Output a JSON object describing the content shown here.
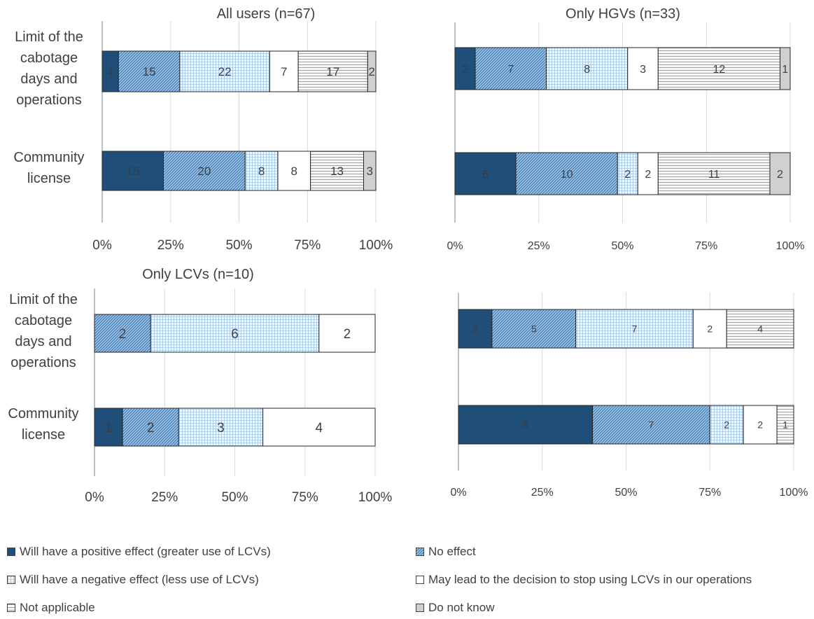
{
  "colors": {
    "positive": "#1f4e79",
    "no_effect": "#9dc3e6",
    "negative": "#deebf7",
    "stop": "#ffffff",
    "not_applicable": "#f2f2f2",
    "dont_know": "#d0d0d0",
    "grid": "#d9d9d9",
    "axis": "#404040"
  },
  "categories_legend": [
    {
      "key": "positive",
      "label": "Will have a positive effect (greater use of LCVs)"
    },
    {
      "key": "no_effect",
      "label": "No effect"
    },
    {
      "key": "negative",
      "label": "Will have a negative effect (less use of LCVs)"
    },
    {
      "key": "stop",
      "label": "May lead to the decision to stop using LCVs in our operations"
    },
    {
      "key": "not_applicable",
      "label": "Not applicable"
    },
    {
      "key": "dont_know",
      "label": "Do not know"
    }
  ],
  "chart_data": [
    {
      "type": "bar",
      "orientation": "horizontal-stacked-100",
      "title": "All users (n=67)",
      "categories": [
        "Limit of the cabotage days and operations",
        "Community license"
      ],
      "category_lines": [
        [
          "Limit of the",
          "cabotage",
          "days and",
          "operations"
        ],
        [
          "Community",
          "license"
        ]
      ],
      "ticks": [
        "0%",
        "25%",
        "50%",
        "75%",
        "100%"
      ],
      "series": [
        {
          "key": "positive",
          "name": "Will have a positive effect (greater use of LCVs)",
          "values": [
            4,
            15
          ]
        },
        {
          "key": "no_effect",
          "name": "No effect",
          "values": [
            15,
            20
          ]
        },
        {
          "key": "negative",
          "name": "Will have a negative effect (less use of LCVs)",
          "values": [
            22,
            8
          ]
        },
        {
          "key": "stop",
          "name": "May lead to the decision to stop using LCVs in our operations",
          "values": [
            7,
            8
          ]
        },
        {
          "key": "not_applicable",
          "name": "Not applicable",
          "values": [
            17,
            13
          ]
        },
        {
          "key": "dont_know",
          "name": "Do not know",
          "values": [
            2,
            3
          ]
        }
      ]
    },
    {
      "type": "bar",
      "orientation": "horizontal-stacked-100",
      "title": "Only HGVs (n=33)",
      "categories": [
        "Limit of the cabotage days and operations",
        "Community license"
      ],
      "category_lines": [
        [],
        []
      ],
      "ticks": [
        "0%",
        "25%",
        "50%",
        "75%",
        "100%"
      ],
      "series": [
        {
          "key": "positive",
          "name": "Will have a positive effect (greater use of LCVs)",
          "values": [
            2,
            6
          ]
        },
        {
          "key": "no_effect",
          "name": "No effect",
          "values": [
            7,
            10
          ]
        },
        {
          "key": "negative",
          "name": "Will have a negative effect (less use of LCVs)",
          "values": [
            8,
            2
          ]
        },
        {
          "key": "stop",
          "name": "May lead to the decision to stop using LCVs in our operations",
          "values": [
            3,
            2
          ]
        },
        {
          "key": "not_applicable",
          "name": "Not applicable",
          "values": [
            12,
            11
          ]
        },
        {
          "key": "dont_know",
          "name": "Do not know",
          "values": [
            1,
            2
          ]
        }
      ]
    },
    {
      "type": "bar",
      "orientation": "horizontal-stacked-100",
      "title": "Only LCVs (n=10)",
      "categories": [
        "Limit of the cabotage days and operations",
        "Community license"
      ],
      "category_lines": [
        [
          "Limit of the",
          "cabotage",
          "days and",
          "operations"
        ],
        [
          "Community",
          "license"
        ]
      ],
      "ticks": [
        "0%",
        "25%",
        "50%",
        "75%",
        "100%"
      ],
      "series": [
        {
          "key": "positive",
          "name": "Will have a positive effect (greater use of LCVs)",
          "values": [
            0,
            1
          ]
        },
        {
          "key": "no_effect",
          "name": "No effect",
          "values": [
            2,
            2
          ]
        },
        {
          "key": "negative",
          "name": "Will have a negative effect (less use of LCVs)",
          "values": [
            6,
            3
          ]
        },
        {
          "key": "stop",
          "name": "May lead to the decision to stop using LCVs in our operations",
          "values": [
            2,
            4
          ]
        },
        {
          "key": "not_applicable",
          "name": "Not applicable",
          "values": [
            0,
            0
          ]
        },
        {
          "key": "dont_know",
          "name": "Do not know",
          "values": [
            0,
            0
          ]
        }
      ]
    },
    {
      "type": "bar",
      "orientation": "horizontal-stacked-100",
      "title": "",
      "categories": [
        "Limit of the cabotage days and operations",
        "Community license"
      ],
      "category_lines": [
        [],
        []
      ],
      "ticks": [
        "0%",
        "25%",
        "50%",
        "75%",
        "100%"
      ],
      "series": [
        {
          "key": "positive",
          "name": "Will have a positive effect (greater use of LCVs)",
          "values": [
            2,
            8
          ]
        },
        {
          "key": "no_effect",
          "name": "No effect",
          "values": [
            5,
            7
          ]
        },
        {
          "key": "negative",
          "name": "Will have a negative effect (less use of LCVs)",
          "values": [
            7,
            2
          ]
        },
        {
          "key": "stop",
          "name": "May lead to the decision to stop using LCVs in our operations",
          "values": [
            2,
            2
          ]
        },
        {
          "key": "not_applicable",
          "name": "Not applicable",
          "values": [
            4,
            1
          ]
        },
        {
          "key": "dont_know",
          "name": "Do not know",
          "values": [
            0,
            0
          ]
        }
      ]
    }
  ]
}
